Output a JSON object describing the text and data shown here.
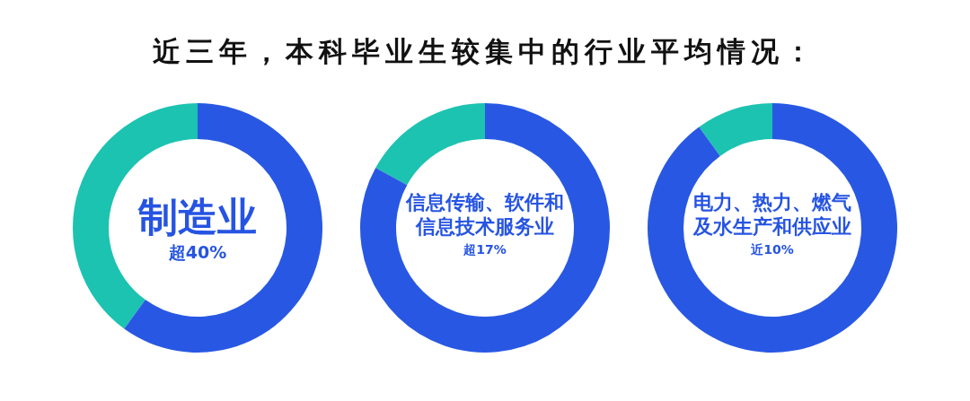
{
  "chart_data": [
    {
      "type": "donut",
      "title": "近三年，本科毕业生较集中的行业平均情况：",
      "categories": [
        "制造业",
        null
      ],
      "values": [
        40,
        60
      ],
      "colors": [
        "#1cc3b1",
        "#2858e3"
      ],
      "value_labels": [
        "超40%",
        null
      ]
    },
    {
      "type": "donut",
      "categories": [
        "信息传输、软件和信息技术服务业",
        null
      ],
      "values": [
        17,
        83
      ],
      "colors": [
        "#1cc3b1",
        "#2858e3"
      ],
      "value_labels": [
        "超17%",
        null
      ]
    },
    {
      "type": "donut",
      "categories": [
        "电力、热力、燃气及水生产和供应业",
        null
      ],
      "values": [
        10,
        90
      ],
      "colors": [
        "#1cc3b1",
        "#2858e3"
      ],
      "value_labels": [
        "近10%",
        null
      ]
    }
  ]
}
